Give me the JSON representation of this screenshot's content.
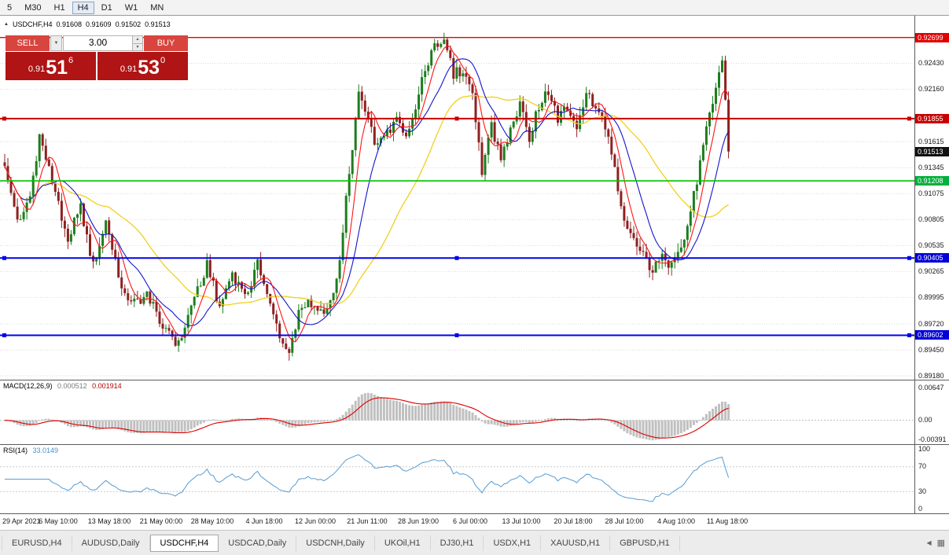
{
  "toolbar": {
    "timeframes": [
      {
        "label": "5",
        "active": false
      },
      {
        "label": "M30",
        "active": false
      },
      {
        "label": "H1",
        "active": false
      },
      {
        "label": "H4",
        "active": true
      },
      {
        "label": "D1",
        "active": false
      },
      {
        "label": "W1",
        "active": false
      },
      {
        "label": "MN",
        "active": false
      }
    ]
  },
  "info_line": {
    "symbol": "USDCHF,H4",
    "open": "0.91608",
    "high": "0.91609",
    "low": "0.91502",
    "close": "0.91513"
  },
  "trade_panel": {
    "sell_label": "SELL",
    "buy_label": "BUY",
    "volume": "3.00",
    "sell_price": {
      "prefix": "0.91",
      "big": "51",
      "sup": "6"
    },
    "buy_price": {
      "prefix": "0.91",
      "big": "53",
      "sup": "0"
    },
    "button_color": "#d8453e",
    "box_color": "#b01414"
  },
  "icons": {
    "symbol_arrow": "▲",
    "order_type_caret": "▼",
    "volume_up": "▲",
    "volume_down": "▼",
    "tab_scroll_left": "◀",
    "chart_windows": "▦"
  },
  "chart_data": {
    "type": "candlestick",
    "symbol": "USDCHF",
    "timeframe": "H4",
    "price_scale": {
      "top": 0.92925,
      "bottom": 0.8914
    },
    "axis_ticks": [
      "0.92430",
      "0.92160",
      "0.91615",
      "0.91345",
      "0.91075",
      "0.90805",
      "0.90535",
      "0.90265",
      "0.89995",
      "0.89720",
      "0.89450",
      "0.89180"
    ],
    "price_badges": [
      {
        "text": "0.92699",
        "bg": "#e00000"
      },
      {
        "text": "0.91855",
        "bg": "#c80000"
      },
      {
        "text": "0.91513",
        "bg": "#111111"
      },
      {
        "text": "0.91208",
        "bg": "#00b03c"
      },
      {
        "text": "0.90405",
        "bg": "#0000d8"
      },
      {
        "text": "0.89602",
        "bg": "#0000d8"
      }
    ],
    "horizontal_lines": [
      {
        "price": 0.92699,
        "color": "#e80000",
        "width": 1.4,
        "handles": false
      },
      {
        "price": 0.91855,
        "color": "#c80000",
        "width": 2,
        "handles": true
      },
      {
        "price": 0.91208,
        "color": "#00c400",
        "width": 1.6,
        "handles": false
      },
      {
        "price": 0.90405,
        "color": "#0000ee",
        "width": 2,
        "handles": true
      },
      {
        "price": 0.89602,
        "color": "#0000ee",
        "width": 2,
        "handles": true
      }
    ],
    "candle_colors": {
      "up": "#1d7d1d",
      "down": "#8e2020"
    },
    "candles": {
      "count": 230,
      "last_close": 0.91513,
      "body_noise": 0.0012,
      "wick_noise": 0.0009,
      "anchors": [
        [
          0,
          0.914
        ],
        [
          4,
          0.9078
        ],
        [
          8,
          0.9105
        ],
        [
          11,
          0.9168
        ],
        [
          15,
          0.912
        ],
        [
          20,
          0.9062
        ],
        [
          24,
          0.9092
        ],
        [
          28,
          0.9032
        ],
        [
          32,
          0.9078
        ],
        [
          36,
          0.9022
        ],
        [
          40,
          0.8992
        ],
        [
          45,
          0.9002
        ],
        [
          50,
          0.8972
        ],
        [
          55,
          0.895
        ],
        [
          60,
          0.9
        ],
        [
          64,
          0.9034
        ],
        [
          68,
          0.899
        ],
        [
          72,
          0.9026
        ],
        [
          76,
          0.9
        ],
        [
          80,
          0.9034
        ],
        [
          84,
          0.899
        ],
        [
          88,
          0.8952
        ],
        [
          90,
          0.8938
        ],
        [
          93,
          0.8988
        ],
        [
          96,
          0.8996
        ],
        [
          100,
          0.8986
        ],
        [
          103,
          0.8992
        ],
        [
          106,
          0.904
        ],
        [
          109,
          0.913
        ],
        [
          112,
          0.9214
        ],
        [
          115,
          0.918
        ],
        [
          118,
          0.9156
        ],
        [
          121,
          0.917
        ],
        [
          124,
          0.919
        ],
        [
          127,
          0.9166
        ],
        [
          130,
          0.92
        ],
        [
          133,
          0.9236
        ],
        [
          136,
          0.9258
        ],
        [
          139,
          0.9266
        ],
        [
          142,
          0.9232
        ],
        [
          145,
          0.9236
        ],
        [
          148,
          0.9214
        ],
        [
          151,
          0.9132
        ],
        [
          154,
          0.9178
        ],
        [
          157,
          0.9146
        ],
        [
          160,
          0.9176
        ],
        [
          163,
          0.92
        ],
        [
          166,
          0.9166
        ],
        [
          169,
          0.92
        ],
        [
          172,
          0.9214
        ],
        [
          175,
          0.9186
        ],
        [
          178,
          0.9196
        ],
        [
          181,
          0.9172
        ],
        [
          184,
          0.9214
        ],
        [
          187,
          0.9196
        ],
        [
          190,
          0.918
        ],
        [
          193,
          0.913
        ],
        [
          196,
          0.9082
        ],
        [
          199,
          0.906
        ],
        [
          202,
          0.9042
        ],
        [
          205,
          0.9028
        ],
        [
          208,
          0.904
        ],
        [
          210,
          0.9026
        ],
        [
          212,
          0.9036
        ],
        [
          215,
          0.906
        ],
        [
          218,
          0.9105
        ],
        [
          221,
          0.9155
        ],
        [
          224,
          0.9205
        ],
        [
          227,
          0.9246
        ],
        [
          228,
          0.9205
        ],
        [
          229,
          0.91513
        ]
      ]
    },
    "moving_averages": [
      {
        "name": "fast",
        "period": 6,
        "color": "#ff1414",
        "width": 1.1
      },
      {
        "name": "medium",
        "period": 13,
        "color": "#1414cc",
        "width": 1.1
      },
      {
        "name": "slow",
        "period": 34,
        "color": "#f0d020",
        "width": 1.3
      }
    ],
    "x_labels": [
      "29 Apr 2021",
      "6 May 10:00",
      "13 May 18:00",
      "21 May 00:00",
      "28 May 10:00",
      "4 Jun 18:00",
      "12 Jun 00:00",
      "21 Jun 11:00",
      "28 Jun 19:00",
      "6 Jul 00:00",
      "13 Jul 10:00",
      "20 Jul 18:00",
      "28 Jul 10:00",
      "4 Aug 10:00",
      "11 Aug 18:00"
    ],
    "macd": {
      "label": "MACD(12,26,9)",
      "value_main": "0.000512",
      "value_signal": "0.001914",
      "fast": 12,
      "slow": 26,
      "signal": 9,
      "axis_ticks": [
        {
          "text": "0.00647",
          "value": 0.00647
        },
        {
          "text": "0.00",
          "value": 0
        },
        {
          "text": "-0.00391",
          "value": -0.00391
        }
      ],
      "histogram_color": "#c0c0c0",
      "signal_color": "#e00000"
    },
    "rsi": {
      "label": "RSI(14)",
      "value": "33.0149",
      "period": 14,
      "levels": [
        70,
        30
      ],
      "axis_ticks": [
        {
          "text": "100",
          "value": 100
        },
        {
          "text": "70",
          "value": 70
        },
        {
          "text": "30",
          "value": 30
        },
        {
          "text": "0",
          "value": 0
        }
      ],
      "line_color": "#569bd2"
    }
  },
  "tabs": [
    {
      "label": "EURUSD,H4",
      "active": false
    },
    {
      "label": "AUDUSD,Daily",
      "active": false
    },
    {
      "label": "USDCHF,H4",
      "active": true
    },
    {
      "label": "USDCAD,Daily",
      "active": false
    },
    {
      "label": "USDCNH,Daily",
      "active": false
    },
    {
      "label": "UKOil,H1",
      "active": false
    },
    {
      "label": "DJ30,H1",
      "active": false
    },
    {
      "label": "USDX,H1",
      "active": false
    },
    {
      "label": "XAUUSD,H1",
      "active": false
    },
    {
      "label": "GBPUSD,H1",
      "active": false
    }
  ]
}
